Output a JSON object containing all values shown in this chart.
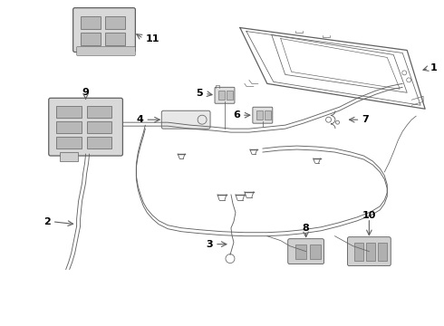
{
  "bg_color": "#ffffff",
  "line_color": "#606060",
  "text_color": "#000000",
  "fig_width": 4.9,
  "fig_height": 3.6,
  "dpi": 100
}
